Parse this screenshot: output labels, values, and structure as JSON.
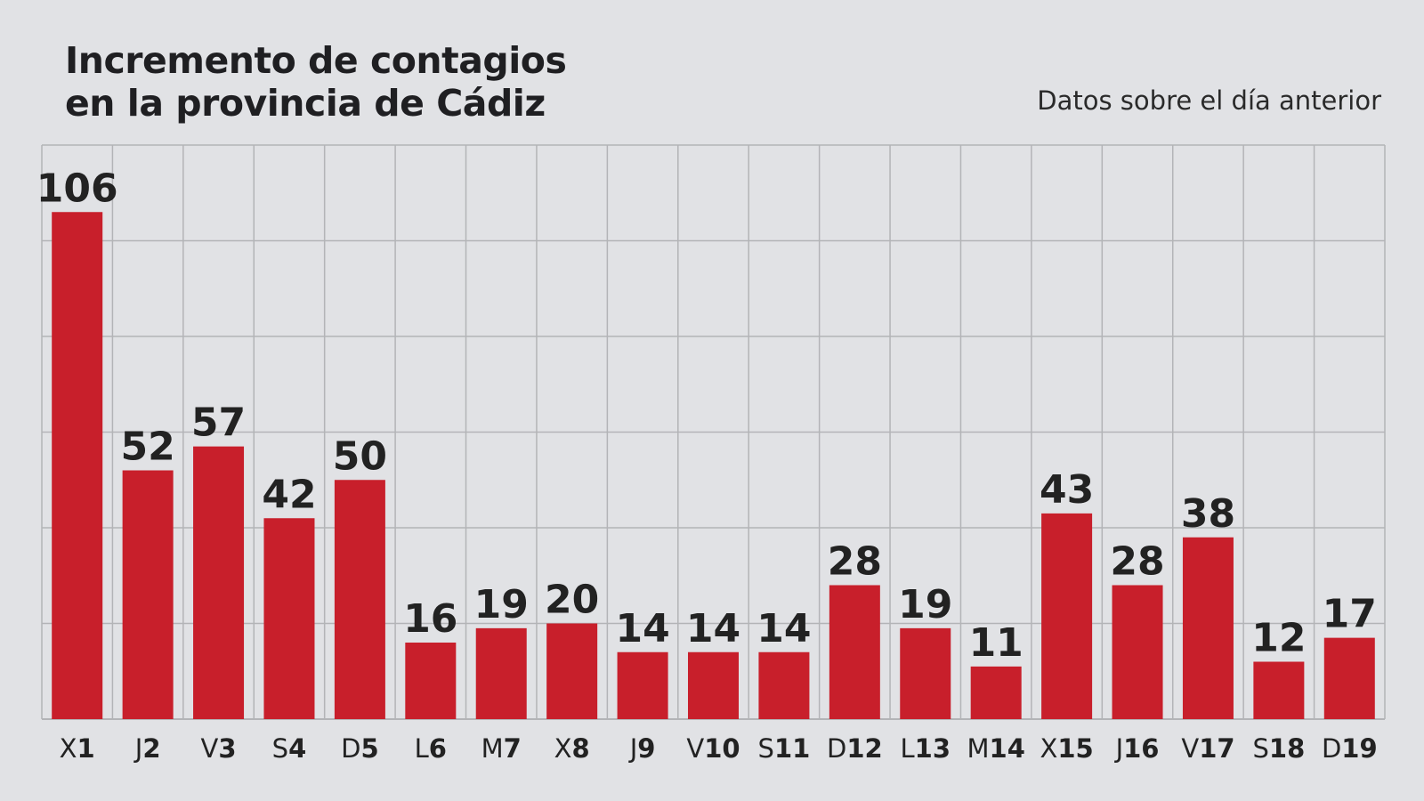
{
  "chart_data": {
    "type": "bar",
    "title": "Incremento de contagios en la provincia de Cádiz",
    "title_lines": [
      "Incremento de contagios",
      "en la provincia de Cádiz"
    ],
    "subtitle": "Datos sobre el día anterior",
    "categories": [
      "X1",
      "J2",
      "V3",
      "S4",
      "D5",
      "L6",
      "M7",
      "X8",
      "J9",
      "V10",
      "S11",
      "D12",
      "L13",
      "M14",
      "X15",
      "J16",
      "V17",
      "S18",
      "D19"
    ],
    "category_parts": [
      {
        "day": "X",
        "num": "1"
      },
      {
        "day": "J",
        "num": "2"
      },
      {
        "day": "V",
        "num": "3"
      },
      {
        "day": "S",
        "num": "4"
      },
      {
        "day": "D",
        "num": "5"
      },
      {
        "day": "L",
        "num": "6"
      },
      {
        "day": "M",
        "num": "7"
      },
      {
        "day": "X",
        "num": "8"
      },
      {
        "day": "J",
        "num": "9"
      },
      {
        "day": "V",
        "num": "10"
      },
      {
        "day": "S",
        "num": "11"
      },
      {
        "day": "D",
        "num": "12"
      },
      {
        "day": "L",
        "num": "13"
      },
      {
        "day": "M",
        "num": "14"
      },
      {
        "day": "X",
        "num": "15"
      },
      {
        "day": "J",
        "num": "16"
      },
      {
        "day": "V",
        "num": "17"
      },
      {
        "day": "S",
        "num": "18"
      },
      {
        "day": "D",
        "num": "19"
      }
    ],
    "values": [
      106,
      52,
      57,
      42,
      50,
      16,
      19,
      20,
      14,
      14,
      14,
      28,
      19,
      11,
      43,
      28,
      38,
      12,
      17
    ],
    "xlabel": "",
    "ylabel": "",
    "ylim": [
      0,
      120
    ],
    "grid_step": 20,
    "grid": true,
    "colors": {
      "bar": "#c81f2b",
      "grid": "#b3b4b7",
      "background": "#e1e2e5",
      "text": "#222222"
    }
  }
}
